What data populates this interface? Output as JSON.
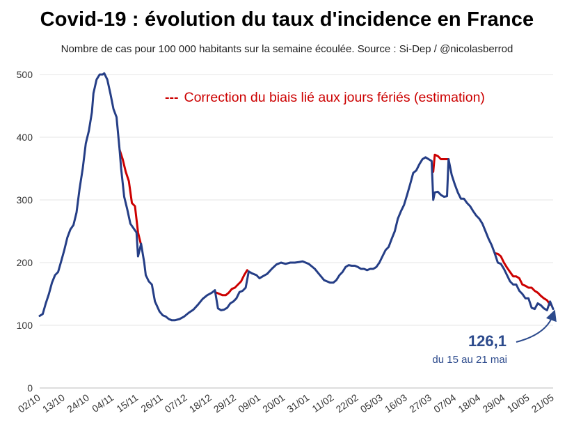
{
  "title": "Covid-19 : évolution du taux d'incidence en France",
  "subtitle": "Nombre de cas pour 100 000 habitants sur la semaine écoulée. Source : Si-Dep  / @nicolasberrod",
  "colors": {
    "main": "#253e86",
    "correction": "#cc0000",
    "grid": "#e6e6e6",
    "annotation": "#2c4a8c"
  },
  "chart_data": {
    "type": "line",
    "title": "Covid-19 : évolution du taux d'incidence en France",
    "xlabel": "",
    "ylabel": "",
    "ylim": [
      0,
      500
    ],
    "yticks": [
      0,
      100,
      200,
      300,
      400,
      500
    ],
    "grid": true,
    "xticks": [
      "02/10",
      "13/10",
      "24/10",
      "04/11",
      "15/11",
      "26/11",
      "07/12",
      "18/12",
      "29/12",
      "09/01",
      "20/01",
      "31/01",
      "11/02",
      "22/02",
      "05/03",
      "16/03",
      "27/03",
      "07/04",
      "18/04",
      "29/04",
      "10/05",
      "21/05"
    ],
    "x_index_range": [
      0,
      231
    ],
    "legend": {
      "label": "Correction du biais lié aux jours fériés (estimation)",
      "marker": "---"
    },
    "annotation": {
      "value": "126,1",
      "period": "du 15 au 21 mai"
    },
    "series": [
      {
        "name": "Taux d'incidence",
        "color": "#253e86",
        "points": [
          [
            0,
            115
          ],
          [
            2,
            118
          ],
          [
            4,
            135
          ],
          [
            6,
            150
          ],
          [
            8,
            168
          ],
          [
            10,
            180
          ],
          [
            12,
            185
          ],
          [
            14,
            202
          ],
          [
            16,
            220
          ],
          [
            18,
            240
          ],
          [
            20,
            253
          ],
          [
            22,
            260
          ],
          [
            24,
            280
          ],
          [
            26,
            318
          ],
          [
            28,
            350
          ],
          [
            30,
            390
          ],
          [
            32,
            410
          ],
          [
            34,
            440
          ],
          [
            35,
            470
          ],
          [
            37,
            492
          ],
          [
            39,
            500
          ],
          [
            41,
            500
          ],
          [
            42,
            502
          ],
          [
            44,
            492
          ],
          [
            46,
            470
          ],
          [
            48,
            445
          ],
          [
            50,
            432
          ],
          [
            52,
            380
          ],
          [
            53,
            350
          ],
          [
            55,
            305
          ],
          [
            57,
            285
          ],
          [
            59,
            262
          ],
          [
            61,
            255
          ],
          [
            63,
            248
          ],
          [
            64,
            210
          ],
          [
            66,
            230
          ],
          [
            68,
            200
          ],
          [
            69,
            180
          ],
          [
            71,
            170
          ],
          [
            73,
            165
          ],
          [
            75,
            138
          ],
          [
            78,
            122
          ],
          [
            80,
            116
          ],
          [
            82,
            114
          ],
          [
            84,
            110
          ],
          [
            86,
            108
          ],
          [
            88,
            108
          ],
          [
            91,
            110
          ],
          [
            94,
            114
          ],
          [
            97,
            120
          ],
          [
            100,
            125
          ],
          [
            103,
            133
          ],
          [
            106,
            142
          ],
          [
            109,
            148
          ],
          [
            112,
            152
          ],
          [
            114,
            156
          ],
          [
            116,
            127
          ],
          [
            118,
            124
          ],
          [
            120,
            125
          ],
          [
            122,
            128
          ],
          [
            124,
            135
          ],
          [
            126,
            138
          ],
          [
            128,
            143
          ],
          [
            130,
            153
          ],
          [
            132,
            155
          ],
          [
            134,
            160
          ],
          [
            136,
            186
          ],
          [
            138,
            183
          ],
          [
            141,
            180
          ],
          [
            143,
            175
          ],
          [
            145,
            178
          ],
          [
            148,
            182
          ],
          [
            151,
            190
          ],
          [
            154,
            197
          ],
          [
            157,
            200
          ],
          [
            160,
            198
          ],
          [
            163,
            200
          ],
          [
            166,
            200
          ],
          [
            169,
            201
          ],
          [
            171,
            202
          ],
          [
            173,
            200
          ],
          [
            175,
            198
          ],
          [
            177,
            194
          ],
          [
            179,
            190
          ],
          [
            181,
            184
          ],
          [
            183,
            178
          ],
          [
            185,
            172
          ],
          [
            187,
            170
          ],
          [
            189,
            168
          ],
          [
            191,
            168
          ],
          [
            193,
            172
          ],
          [
            195,
            180
          ],
          [
            197,
            185
          ],
          [
            199,
            193
          ],
          [
            201,
            196
          ],
          [
            203,
            195
          ],
          [
            205,
            195
          ],
          [
            207,
            193
          ],
          [
            209,
            190
          ],
          [
            211,
            190
          ],
          [
            213,
            188
          ],
          [
            215,
            190
          ],
          [
            217,
            190
          ],
          [
            219,
            193
          ],
          [
            221,
            200
          ],
          [
            223,
            210
          ],
          [
            225,
            220
          ],
          [
            227,
            225
          ],
          [
            229,
            238
          ],
          [
            231,
            250
          ],
          [
            233,
            270
          ],
          [
            235,
            282
          ],
          [
            237,
            292
          ],
          [
            239,
            308
          ],
          [
            241,
            325
          ],
          [
            243,
            343
          ],
          [
            245,
            347
          ],
          [
            247,
            357
          ],
          [
            249,
            365
          ],
          [
            251,
            368
          ],
          [
            253,
            365
          ],
          [
            255,
            362
          ],
          [
            256,
            300
          ],
          [
            257,
            312
          ],
          [
            259,
            313
          ],
          [
            261,
            308
          ],
          [
            263,
            305
          ],
          [
            265,
            306
          ],
          [
            266,
            365
          ],
          [
            268,
            340
          ],
          [
            270,
            325
          ],
          [
            272,
            312
          ],
          [
            274,
            302
          ],
          [
            276,
            302
          ],
          [
            278,
            295
          ],
          [
            280,
            290
          ],
          [
            282,
            282
          ],
          [
            284,
            275
          ],
          [
            286,
            270
          ],
          [
            288,
            262
          ],
          [
            290,
            250
          ],
          [
            292,
            238
          ],
          [
            294,
            228
          ],
          [
            296,
            215
          ],
          [
            298,
            200
          ],
          [
            300,
            198
          ],
          [
            302,
            190
          ],
          [
            304,
            180
          ],
          [
            306,
            170
          ],
          [
            308,
            165
          ],
          [
            310,
            165
          ],
          [
            312,
            155
          ],
          [
            314,
            150
          ],
          [
            316,
            143
          ],
          [
            318,
            143
          ],
          [
            320,
            128
          ],
          [
            322,
            126
          ],
          [
            324,
            135
          ],
          [
            326,
            132
          ],
          [
            328,
            127
          ],
          [
            330,
            124
          ],
          [
            332,
            138
          ],
          [
            334,
            126
          ]
        ]
      },
      {
        "name": "Correction du biais lié aux jours fériés (estimation)",
        "color": "#cc0000",
        "segments": [
          [
            [
              52,
              380
            ],
            [
              54,
              365
            ],
            [
              56,
              345
            ],
            [
              58,
              330
            ],
            [
              60,
              295
            ],
            [
              62,
              290
            ],
            [
              64,
              248
            ],
            [
              66,
              228
            ]
          ],
          [
            [
              115,
              152
            ],
            [
              117,
              150
            ],
            [
              119,
              148
            ],
            [
              121,
              148
            ],
            [
              123,
              152
            ],
            [
              125,
              158
            ],
            [
              127,
              160
            ],
            [
              129,
              165
            ],
            [
              131,
              170
            ],
            [
              133,
              180
            ],
            [
              135,
              188
            ]
          ],
          [
            [
              256,
              345
            ],
            [
              257,
              372
            ],
            [
              259,
              370
            ],
            [
              261,
              365
            ],
            [
              263,
              365
            ],
            [
              266,
              365
            ]
          ],
          [
            [
              296,
              215
            ],
            [
              298,
              214
            ],
            [
              300,
              210
            ],
            [
              302,
              200
            ],
            [
              304,
              192
            ],
            [
              306,
              185
            ],
            [
              308,
              178
            ],
            [
              310,
              178
            ],
            [
              312,
              175
            ],
            [
              314,
              165
            ],
            [
              316,
              163
            ],
            [
              318,
              160
            ],
            [
              320,
              160
            ],
            [
              322,
              155
            ],
            [
              324,
              152
            ],
            [
              326,
              147
            ],
            [
              328,
              143
            ],
            [
              330,
              140
            ],
            [
              332,
              133
            ]
          ]
        ]
      }
    ]
  }
}
